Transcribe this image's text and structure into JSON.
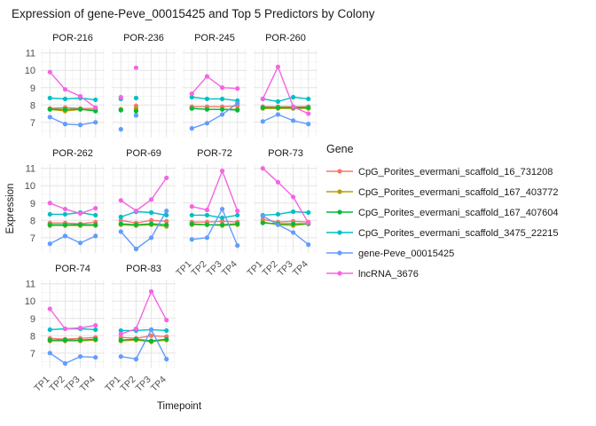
{
  "chart_data": {
    "type": "line",
    "title": "Expression of gene-Peve_00015425 and Top 5 Predictors by Colony",
    "xlabel": "Timepoint",
    "ylabel": "Expression",
    "x_categories": [
      "TP1",
      "TP2",
      "TP3",
      "TP4"
    ],
    "ylim": [
      6.12,
      11.24
    ],
    "yticks": [
      7,
      8,
      9,
      10,
      11
    ],
    "grid": {
      "major_color": "#e4e4e4",
      "minor_color": "#f1f1f1"
    },
    "legend_title": "Gene",
    "legend_position": "right",
    "series_meta": [
      {
        "name": "CpG_Porites_evermani_scaffold_16_731208",
        "color": "#F8766D"
      },
      {
        "name": "CpG_Porites_evermani_scaffold_167_403772",
        "color": "#B79F00"
      },
      {
        "name": "CpG_Porites_evermani_scaffold_167_407604",
        "color": "#00BA38"
      },
      {
        "name": "CpG_Porites_evermani_scaffold_3475_22215",
        "color": "#00BFC4"
      },
      {
        "name": "gene-Peve_00015425",
        "color": "#619CFF"
      },
      {
        "name": "lncRNA_3676",
        "color": "#F564E3"
      }
    ],
    "facets": [
      {
        "colony": "POR-216",
        "points_only": false,
        "series": [
          [
            7.8,
            7.85,
            7.8,
            7.8
          ],
          [
            7.75,
            7.65,
            7.75,
            7.7
          ],
          [
            7.75,
            7.75,
            7.75,
            7.65
          ],
          [
            8.4,
            8.35,
            8.4,
            8.3
          ],
          [
            7.3,
            6.9,
            6.85,
            7.0
          ],
          [
            9.9,
            8.9,
            8.5,
            7.85
          ]
        ]
      },
      {
        "colony": "POR-236",
        "points_only": true,
        "series": [
          [
            7.75,
            7.95,
            null,
            null
          ],
          [
            7.75,
            7.8,
            null,
            null
          ],
          [
            7.7,
            7.65,
            null,
            null
          ],
          [
            8.35,
            8.4,
            null,
            null
          ],
          [
            6.6,
            7.4,
            null,
            null
          ],
          [
            8.45,
            10.15,
            null,
            null
          ]
        ]
      },
      {
        "colony": "POR-245",
        "points_only": false,
        "series": [
          [
            7.9,
            7.9,
            7.9,
            7.95
          ],
          [
            7.8,
            7.75,
            7.75,
            7.75
          ],
          [
            7.8,
            7.75,
            7.75,
            7.7
          ],
          [
            8.45,
            8.35,
            8.35,
            8.25
          ],
          [
            6.65,
            6.95,
            7.45,
            8.1
          ],
          [
            8.65,
            9.65,
            9.0,
            8.95
          ]
        ]
      },
      {
        "colony": "POR-260",
        "points_only": false,
        "series": [
          [
            7.9,
            7.9,
            7.9,
            7.9
          ],
          [
            7.8,
            7.8,
            7.8,
            7.8
          ],
          [
            7.85,
            7.85,
            7.85,
            7.85
          ],
          [
            8.35,
            8.2,
            8.45,
            8.35
          ],
          [
            7.05,
            7.45,
            7.1,
            6.9
          ],
          [
            8.35,
            10.2,
            7.9,
            7.5
          ]
        ]
      },
      {
        "colony": "POR-262",
        "points_only": false,
        "series": [
          [
            7.85,
            7.85,
            7.8,
            7.9
          ],
          [
            7.7,
            7.7,
            7.7,
            7.7
          ],
          [
            7.75,
            7.75,
            7.75,
            7.75
          ],
          [
            8.35,
            8.35,
            8.45,
            8.3
          ],
          [
            6.65,
            7.1,
            6.7,
            7.1
          ],
          [
            9.0,
            8.65,
            8.4,
            8.7
          ]
        ]
      },
      {
        "colony": "POR-69",
        "points_only": false,
        "series": [
          [
            8.0,
            7.85,
            8.0,
            7.95
          ],
          [
            7.75,
            7.7,
            7.75,
            7.65
          ],
          [
            7.8,
            7.75,
            7.8,
            7.75
          ],
          [
            8.2,
            8.5,
            8.45,
            8.3
          ],
          [
            7.35,
            6.35,
            7.0,
            8.55
          ],
          [
            9.15,
            8.55,
            9.2,
            10.45
          ]
        ]
      },
      {
        "colony": "POR-72",
        "points_only": false,
        "series": [
          [
            7.9,
            7.9,
            7.95,
            7.9
          ],
          [
            7.75,
            7.75,
            7.7,
            7.75
          ],
          [
            7.8,
            7.75,
            7.75,
            7.8
          ],
          [
            8.3,
            8.3,
            8.15,
            8.3
          ],
          [
            6.9,
            7.0,
            8.65,
            6.55
          ],
          [
            8.8,
            8.6,
            10.85,
            8.55
          ]
        ]
      },
      {
        "colony": "POR-73",
        "points_only": false,
        "series": [
          [
            8.05,
            7.9,
            7.95,
            7.9
          ],
          [
            7.9,
            7.75,
            7.7,
            7.8
          ],
          [
            7.85,
            7.8,
            7.8,
            7.8
          ],
          [
            8.3,
            8.35,
            8.5,
            8.45
          ],
          [
            8.25,
            7.75,
            7.3,
            6.6
          ],
          [
            11.0,
            10.2,
            9.35,
            7.85
          ]
        ]
      },
      {
        "colony": "POR-74",
        "points_only": false,
        "series": [
          [
            7.85,
            7.8,
            7.85,
            7.9
          ],
          [
            7.7,
            7.7,
            7.7,
            7.75
          ],
          [
            7.75,
            7.75,
            7.75,
            7.8
          ],
          [
            8.35,
            8.4,
            8.4,
            8.35
          ],
          [
            7.0,
            6.4,
            6.8,
            6.75
          ],
          [
            9.55,
            8.4,
            8.45,
            8.6
          ]
        ]
      },
      {
        "colony": "POR-83",
        "points_only": false,
        "series": [
          [
            7.9,
            7.85,
            8.0,
            7.95
          ],
          [
            7.7,
            7.75,
            7.65,
            7.75
          ],
          [
            7.75,
            7.8,
            7.7,
            7.8
          ],
          [
            8.3,
            8.3,
            8.35,
            8.3
          ],
          [
            6.8,
            6.65,
            8.35,
            6.65
          ],
          [
            8.1,
            8.4,
            10.55,
            8.9
          ]
        ]
      }
    ]
  }
}
